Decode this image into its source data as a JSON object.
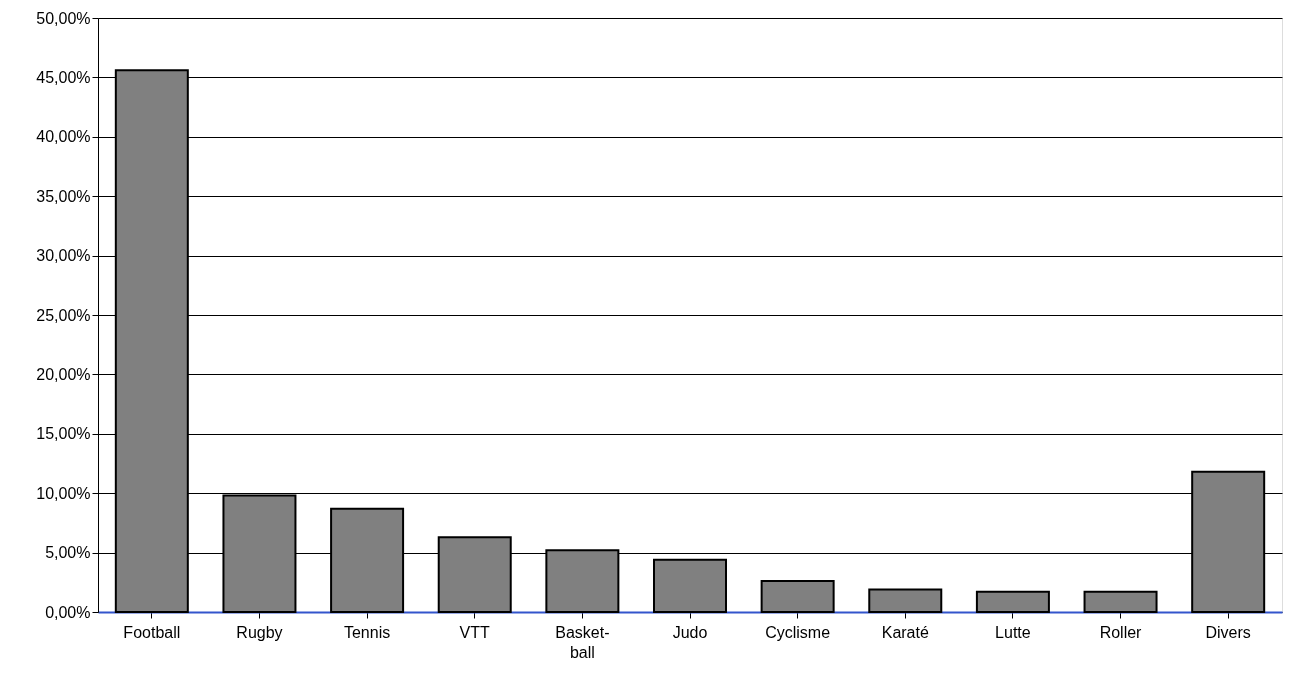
{
  "chart_data": {
    "type": "bar",
    "categories": [
      "Football",
      "Rugby",
      "Tennis",
      "VTT",
      "Basket-\nball",
      "Judo",
      "Cyclisme",
      "Karaté",
      "Lutte",
      "Roller",
      "Divers"
    ],
    "values": [
      45.6,
      9.8,
      8.7,
      6.3,
      5.2,
      4.4,
      2.6,
      1.9,
      1.7,
      1.7,
      11.8
    ],
    "color": "#808080",
    "ylim": [
      0,
      50
    ],
    "yticks": [
      {
        "value": 0,
        "label": "0,00%"
      },
      {
        "value": 5,
        "label": "5,00%"
      },
      {
        "value": 10,
        "label": "10,00%"
      },
      {
        "value": 15,
        "label": "15,00%"
      },
      {
        "value": 20,
        "label": "20,00%"
      },
      {
        "value": 25,
        "label": "25,00%"
      },
      {
        "value": 30,
        "label": "30,00%"
      },
      {
        "value": 35,
        "label": "35,00%"
      },
      {
        "value": 40,
        "label": "40,00%"
      },
      {
        "value": 45,
        "label": "45,00%"
      },
      {
        "value": 50,
        "label": "50,00%"
      }
    ],
    "grid": "y"
  }
}
